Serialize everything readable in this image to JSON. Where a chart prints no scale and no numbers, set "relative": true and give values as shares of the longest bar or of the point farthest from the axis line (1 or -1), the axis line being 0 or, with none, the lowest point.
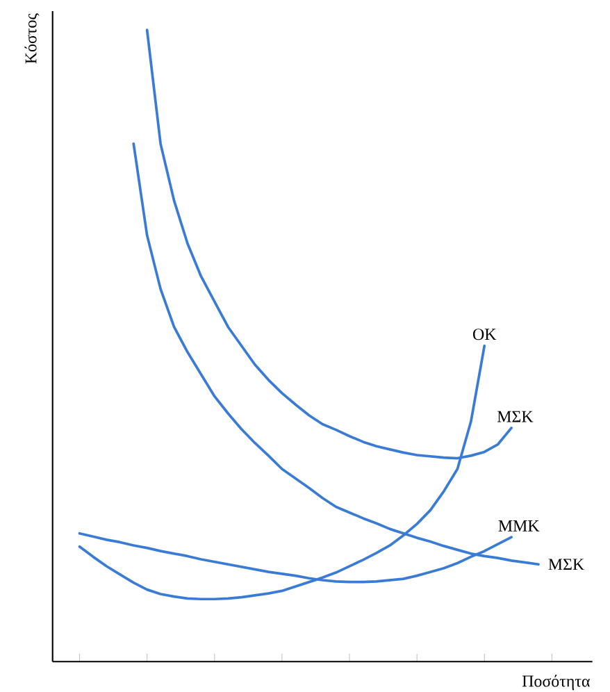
{
  "chart_data": {
    "type": "line",
    "relative": true,
    "xlabel": "Ποσότητα",
    "ylabel": "Κόστος",
    "marker": "none",
    "line_style": "solid",
    "categories": [
      null,
      null,
      null,
      null,
      null,
      null,
      null,
      null,
      null,
      null,
      null,
      null,
      null,
      null,
      null,
      null,
      null,
      null,
      null,
      null,
      null,
      null,
      null,
      null,
      null,
      null,
      null,
      null,
      null,
      null,
      null,
      null,
      null,
      null,
      null
    ],
    "series": [
      {
        "name": "ΜΣΚ",
        "color": "#3a7bd5",
        "values": [
          null,
          null,
          null,
          null,
          null,
          1.0,
          0.82,
          0.73,
          0.662,
          0.61,
          0.57,
          0.53,
          0.5,
          0.47,
          0.446,
          0.425,
          0.407,
          0.39,
          0.376,
          0.367,
          0.357,
          0.348,
          0.341,
          0.336,
          0.331,
          0.327,
          0.325,
          0.323,
          0.322,
          0.326,
          0.332,
          0.344,
          0.37,
          null,
          null
        ]
      },
      {
        "name": "ΜΣΚ",
        "color": "#3a7bd5",
        "values": [
          null,
          null,
          null,
          null,
          0.82,
          0.675,
          0.59,
          0.53,
          0.49,
          0.455,
          0.42,
          0.393,
          0.368,
          0.346,
          0.326,
          0.305,
          0.29,
          0.275,
          0.259,
          0.245,
          0.236,
          0.227,
          0.219,
          0.21,
          0.203,
          0.196,
          0.19,
          0.183,
          0.177,
          0.171,
          0.167,
          0.164,
          0.16,
          0.157,
          0.154
        ]
      },
      {
        "name": "ΟΚ",
        "color": "#3a7bd5",
        "values": [
          0.182,
          0.166,
          0.151,
          0.138,
          0.125,
          0.114,
          0.107,
          0.103,
          0.1,
          0.099,
          0.099,
          0.1,
          0.102,
          0.105,
          0.108,
          0.112,
          0.119,
          0.126,
          0.133,
          0.141,
          0.151,
          0.161,
          0.172,
          0.184,
          0.2,
          0.218,
          0.24,
          0.27,
          0.305,
          0.38,
          0.5,
          null,
          null,
          null,
          null
        ]
      },
      {
        "name": "ΜΜΚ",
        "color": "#3a7bd5",
        "values": [
          0.203,
          0.198,
          0.193,
          0.189,
          0.184,
          0.18,
          0.175,
          0.171,
          0.167,
          0.162,
          0.158,
          0.154,
          0.15,
          0.146,
          0.142,
          0.139,
          0.136,
          0.132,
          0.129,
          0.127,
          0.126,
          0.126,
          0.127,
          0.129,
          0.131,
          0.136,
          0.142,
          0.148,
          0.156,
          0.166,
          0.175,
          0.186,
          0.197,
          null,
          null
        ]
      }
    ]
  }
}
